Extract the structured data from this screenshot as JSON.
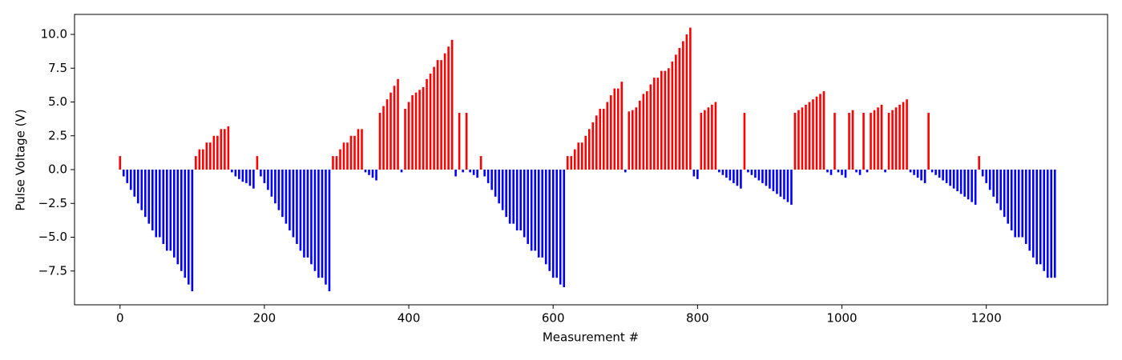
{
  "chart_data": {
    "type": "bar",
    "ylabel": "Pulse Voltage (V)",
    "xlabel": "Measurement #",
    "positive_color": "#ff0000",
    "negative_color": "#0000ff",
    "xlim": [
      -63,
      1368
    ],
    "ylim": [
      -10.0,
      11.48
    ],
    "xticks": [
      0,
      200,
      400,
      600,
      800,
      1000,
      1200
    ],
    "yticks": [
      {
        "value": -7.5,
        "label": "−7.5"
      },
      {
        "value": -5,
        "label": "−5.0"
      },
      {
        "value": -2.5,
        "label": "−2.5"
      },
      {
        "value": 0,
        "label": "0.0"
      },
      {
        "value": 2.5,
        "label": "2.5"
      },
      {
        "value": 5,
        "label": "5.0"
      },
      {
        "value": 7.5,
        "label": "7.5"
      },
      {
        "value": 10,
        "label": "10.0"
      }
    ],
    "x": [
      0,
      5,
      10,
      15,
      20,
      25,
      30,
      35,
      40,
      45,
      50,
      55,
      60,
      65,
      70,
      75,
      80,
      85,
      90,
      95,
      100,
      105,
      110,
      115,
      120,
      125,
      130,
      135,
      140,
      145,
      150,
      155,
      160,
      165,
      170,
      175,
      180,
      185,
      190,
      195,
      200,
      205,
      210,
      215,
      220,
      225,
      230,
      235,
      240,
      245,
      250,
      255,
      260,
      265,
      270,
      275,
      280,
      285,
      290,
      295,
      300,
      305,
      310,
      315,
      320,
      325,
      330,
      335,
      340,
      345,
      350,
      355,
      360,
      365,
      370,
      375,
      380,
      385,
      390,
      395,
      400,
      405,
      410,
      415,
      420,
      425,
      430,
      435,
      440,
      445,
      450,
      455,
      460,
      465,
      470,
      475,
      480,
      485,
      490,
      495,
      500,
      505,
      510,
      515,
      520,
      525,
      530,
      535,
      540,
      545,
      550,
      555,
      560,
      565,
      570,
      575,
      580,
      585,
      590,
      595,
      600,
      605,
      610,
      615,
      620,
      625,
      630,
      635,
      640,
      645,
      650,
      655,
      660,
      665,
      670,
      675,
      680,
      685,
      690,
      695,
      700,
      705,
      710,
      715,
      720,
      725,
      730,
      735,
      740,
      745,
      750,
      755,
      760,
      765,
      770,
      775,
      780,
      785,
      790,
      795,
      800,
      805,
      810,
      815,
      820,
      825,
      830,
      835,
      840,
      845,
      850,
      855,
      860,
      865,
      870,
      875,
      880,
      885,
      890,
      895,
      900,
      905,
      910,
      915,
      920,
      925,
      930,
      935,
      940,
      945,
      950,
      955,
      960,
      965,
      970,
      975,
      980,
      985,
      990,
      995,
      1000,
      1005,
      1010,
      1015,
      1020,
      1025,
      1030,
      1035,
      1040,
      1045,
      1050,
      1055,
      1060,
      1065,
      1070,
      1075,
      1080,
      1085,
      1090,
      1095,
      1100,
      1105,
      1110,
      1115,
      1120,
      1125,
      1130,
      1135,
      1140,
      1145,
      1150,
      1155,
      1160,
      1165,
      1170,
      1175,
      1180,
      1185,
      1190,
      1195,
      1200,
      1205,
      1210,
      1215,
      1220,
      1225,
      1230,
      1235,
      1240,
      1245,
      1250,
      1255,
      1260,
      1265,
      1270,
      1275,
      1280,
      1285,
      1290,
      1295
    ],
    "values": [
      1,
      -0.5,
      -1,
      -1.5,
      -2,
      -2.5,
      -3,
      -3.5,
      -4,
      -4.5,
      -5,
      -5,
      -5.5,
      -6,
      -6,
      -6.5,
      -7,
      -7.5,
      -8,
      -8.5,
      -9,
      1,
      1.5,
      1.5,
      2,
      2,
      2.5,
      2.5,
      3,
      3,
      3.2,
      -0.2,
      -0.5,
      -0.7,
      -0.9,
      -1,
      -1.2,
      -1.4,
      1,
      -0.5,
      -1,
      -1.5,
      -2,
      -2.5,
      -3,
      -3.5,
      -4,
      -4.5,
      -5,
      -5.5,
      -6,
      -6.5,
      -6.5,
      -7,
      -7.5,
      -8,
      -8,
      -8.5,
      -9,
      1,
      1,
      1.5,
      2,
      2,
      2.5,
      2.5,
      3,
      3,
      -0.2,
      -0.4,
      -0.6,
      -0.8,
      4.2,
      4.7,
      5.2,
      5.7,
      6.2,
      6.7,
      -0.2,
      4.5,
      5,
      5.5,
      5.7,
      5.9,
      6.1,
      6.7,
      7.1,
      7.6,
      8.1,
      8.1,
      8.6,
      9.1,
      9.6,
      -0.5,
      4.2,
      -0.2,
      4.2,
      -0.2,
      -0.4,
      -0.6,
      1,
      -0.5,
      -1,
      -1.5,
      -2,
      -2.5,
      -3,
      -3.5,
      -4,
      -4,
      -4.5,
      -4.5,
      -5,
      -5.5,
      -6,
      -6,
      -6.5,
      -6.5,
      -7,
      -7.5,
      -8,
      -8,
      -8.5,
      -8.7,
      1,
      1,
      1.5,
      2,
      2,
      2.5,
      3,
      3.5,
      4,
      4.5,
      4.5,
      5,
      5.5,
      6,
      6,
      6.5,
      -0.2,
      4.3,
      4.4,
      4.6,
      5.1,
      5.6,
      5.8,
      6.3,
      6.8,
      6.8,
      7.3,
      7.3,
      7.5,
      8,
      8.5,
      9,
      9.5,
      10,
      10.5,
      -0.5,
      -0.7,
      4.2,
      4.4,
      4.6,
      4.8,
      5,
      -0.2,
      -0.4,
      -0.6,
      -0.8,
      -1,
      -1.2,
      -1.4,
      4.2,
      -0.2,
      -0.4,
      -0.6,
      -0.8,
      -1,
      -1.2,
      -1.4,
      -1.6,
      -1.8,
      -2,
      -2.2,
      -2.4,
      -2.6,
      4.2,
      4.4,
      4.6,
      4.8,
      5,
      5.2,
      5.4,
      5.6,
      5.8,
      -0.2,
      -0.4,
      4.2,
      -0.2,
      -0.4,
      -0.6,
      4.2,
      4.4,
      -0.2,
      -0.4,
      4.2,
      -0.2,
      4.2,
      4.4,
      4.6,
      4.8,
      -0.2,
      4.2,
      4.4,
      4.6,
      4.8,
      5,
      5.2,
      -0.2,
      -0.4,
      -0.6,
      -0.8,
      -1,
      4.2,
      -0.2,
      -0.4,
      -0.6,
      -0.8,
      -1,
      -1.2,
      -1.4,
      -1.6,
      -1.8,
      -2,
      -2.2,
      -2.4,
      -2.6,
      1,
      -0.5,
      -1,
      -1.5,
      -2,
      -2.5,
      -3,
      -3.5,
      -4,
      -4.5,
      -5,
      -5,
      -5,
      -5.5,
      -6,
      -6.5,
      -7,
      -7,
      -7.5,
      -8,
      -8,
      -8
    ]
  }
}
